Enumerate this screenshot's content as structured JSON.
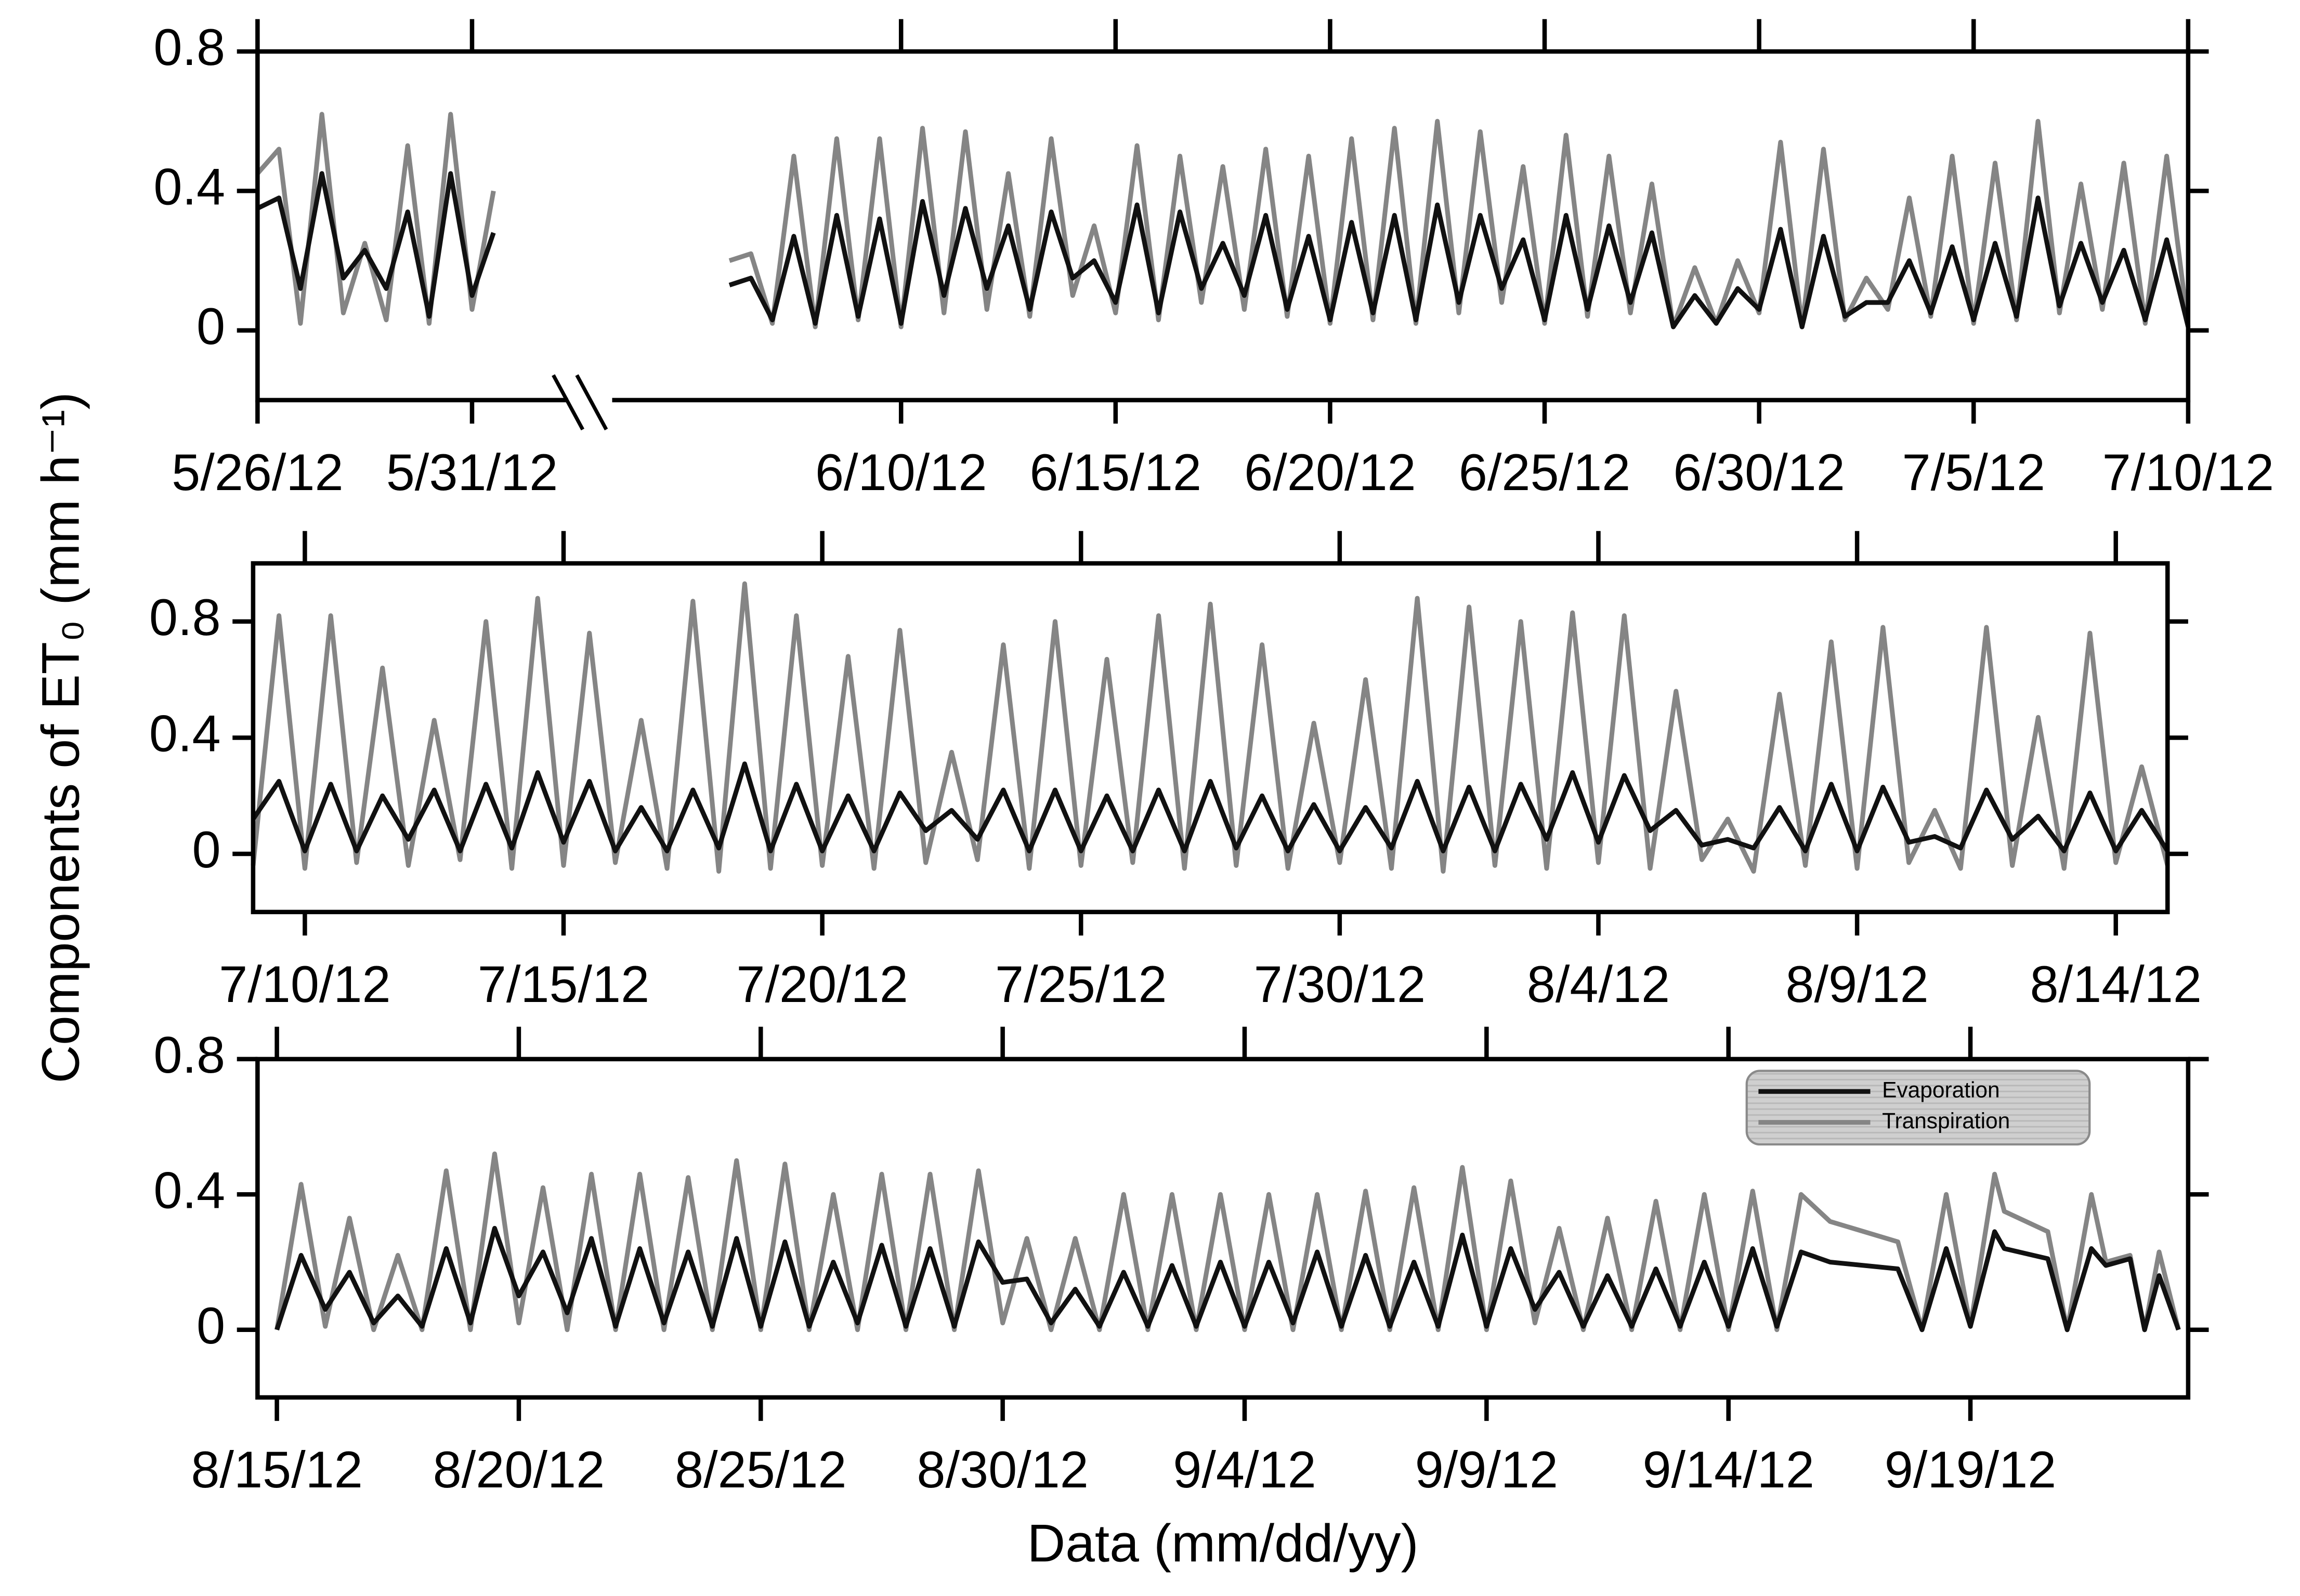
{
  "chart_data": [
    {
      "type": "line",
      "xlim": [
        0,
        45
      ],
      "ylim": [
        -0.2,
        0.8
      ],
      "xticks": [
        {
          "value": 0,
          "label": "5/26/12"
        },
        {
          "value": 5,
          "label": "5/31/12"
        },
        {
          "value": 15,
          "label": "6/10/12"
        },
        {
          "value": 20,
          "label": "6/15/12"
        },
        {
          "value": 25,
          "label": "6/20/12"
        },
        {
          "value": 30,
          "label": "6/25/12"
        },
        {
          "value": 35,
          "label": "6/30/12"
        },
        {
          "value": 40,
          "label": "7/5/12"
        },
        {
          "value": 45,
          "label": "7/10/12"
        }
      ],
      "yticks": [
        0,
        0.4,
        0.8
      ],
      "x": [
        0,
        0.5,
        1,
        1.5,
        2,
        2.5,
        3,
        3.5,
        4,
        4.5,
        5,
        5.5,
        null,
        11,
        11.5,
        12,
        12.5,
        13,
        13.5,
        14,
        14.5,
        15,
        15.5,
        16,
        16.5,
        17,
        17.5,
        18,
        18.5,
        19,
        19.5,
        20,
        20.5,
        21,
        21.5,
        22,
        22.5,
        23,
        23.5,
        24,
        24.5,
        25,
        25.5,
        26,
        26.5,
        27,
        27.5,
        28,
        28.5,
        29,
        29.5,
        30,
        30.5,
        31,
        31.5,
        32,
        32.5,
        33,
        33.5,
        34,
        34.5,
        35,
        35.5,
        36,
        36.5,
        37,
        37.5,
        38,
        38.5,
        39,
        39.5,
        40,
        40.5,
        41,
        41.5,
        42,
        42.5,
        43,
        43.5,
        44,
        44.5,
        45
      ],
      "series": [
        {
          "color": "#111111",
          "values": [
            0.35,
            0.38,
            0.12,
            0.45,
            0.15,
            0.23,
            0.12,
            0.34,
            0.04,
            0.45,
            0.1,
            0.28,
            null,
            0.13,
            0.15,
            0.03,
            0.27,
            0.02,
            0.33,
            0.04,
            0.32,
            0.02,
            0.37,
            0.1,
            0.35,
            0.12,
            0.3,
            0.06,
            0.34,
            0.15,
            0.2,
            0.08,
            0.36,
            0.05,
            0.34,
            0.12,
            0.25,
            0.1,
            0.33,
            0.06,
            0.27,
            0.03,
            0.31,
            0.05,
            0.33,
            0.03,
            0.36,
            0.08,
            0.33,
            0.12,
            0.26,
            0.03,
            0.33,
            0.06,
            0.3,
            0.08,
            0.28,
            0.01,
            0.1,
            0.02,
            0.12,
            0.06,
            0.29,
            0.01,
            0.27,
            0.04,
            0.08,
            0.08,
            0.2,
            0.05,
            0.24,
            0.03,
            0.25,
            0.04,
            0.38,
            0.07,
            0.25,
            0.08,
            0.23,
            0.03,
            0.26,
            0.01
          ]
        },
        {
          "color": "#858585",
          "values": [
            0.45,
            0.52,
            0.02,
            0.62,
            0.05,
            0.25,
            0.03,
            0.53,
            0.02,
            0.62,
            0.06,
            0.4,
            null,
            0.2,
            0.22,
            0.02,
            0.5,
            0.01,
            0.55,
            0.03,
            0.55,
            0.01,
            0.58,
            0.05,
            0.57,
            0.06,
            0.45,
            0.04,
            0.55,
            0.1,
            0.3,
            0.05,
            0.53,
            0.03,
            0.5,
            0.08,
            0.47,
            0.06,
            0.52,
            0.04,
            0.5,
            0.02,
            0.55,
            0.03,
            0.58,
            0.02,
            0.6,
            0.05,
            0.57,
            0.08,
            0.47,
            0.02,
            0.56,
            0.04,
            0.5,
            0.05,
            0.42,
            0.01,
            0.18,
            0.02,
            0.2,
            0.05,
            0.54,
            0.01,
            0.52,
            0.03,
            0.15,
            0.06,
            0.38,
            0.04,
            0.5,
            0.02,
            0.48,
            0.03,
            0.6,
            0.05,
            0.42,
            0.06,
            0.48,
            0.02,
            0.5,
            0.01
          ]
        }
      ]
    },
    {
      "type": "line",
      "xlim": [
        44,
        81
      ],
      "ylim": [
        -0.2,
        1.0
      ],
      "ylabel": "Components of ET₀ (mm h⁻¹)",
      "xticks": [
        {
          "value": 45,
          "label": "7/10/12"
        },
        {
          "value": 50,
          "label": "7/15/12"
        },
        {
          "value": 55,
          "label": "7/20/12"
        },
        {
          "value": 60,
          "label": "7/25/12"
        },
        {
          "value": 65,
          "label": "7/30/12"
        },
        {
          "value": 70,
          "label": "8/4/12"
        },
        {
          "value": 75,
          "label": "8/9/12"
        },
        {
          "value": 80,
          "label": "8/14/12"
        }
      ],
      "yticks": [
        0,
        0.4,
        0.8
      ],
      "x": [
        44,
        44.5,
        45,
        45.5,
        46,
        46.5,
        47,
        47.5,
        48,
        48.5,
        49,
        49.5,
        50,
        50.5,
        51,
        51.5,
        52,
        52.5,
        53,
        53.5,
        54,
        54.5,
        55,
        55.5,
        56,
        56.5,
        57,
        57.5,
        58,
        58.5,
        59,
        59.5,
        60,
        60.5,
        61,
        61.5,
        62,
        62.5,
        63,
        63.5,
        64,
        64.5,
        65,
        65.5,
        66,
        66.5,
        67,
        67.5,
        68,
        68.5,
        69,
        69.5,
        70,
        70.5,
        71,
        71.5,
        72,
        72.5,
        73,
        73.5,
        74,
        74.5,
        75,
        75.5,
        76,
        76.5,
        77,
        77.5,
        78,
        78.5,
        79,
        79.5,
        80,
        80.5,
        81
      ],
      "series": [
        {
          "color": "#111111",
          "values": [
            0.12,
            0.25,
            0.01,
            0.24,
            0.01,
            0.2,
            0.05,
            0.22,
            0.01,
            0.24,
            0.02,
            0.28,
            0.04,
            0.25,
            0.01,
            0.16,
            0.01,
            0.22,
            0.02,
            0.31,
            0.01,
            0.24,
            0.01,
            0.2,
            0.01,
            0.21,
            0.08,
            0.15,
            0.05,
            0.22,
            0.01,
            0.22,
            0.01,
            0.2,
            0.01,
            0.22,
            0.01,
            0.25,
            0.02,
            0.2,
            0.01,
            0.17,
            0.01,
            0.16,
            0.02,
            0.25,
            0.01,
            0.23,
            0.01,
            0.24,
            0.05,
            0.28,
            0.04,
            0.27,
            0.08,
            0.15,
            0.03,
            0.05,
            0.02,
            0.16,
            0.01,
            0.24,
            0.01,
            0.23,
            0.04,
            0.06,
            0.02,
            0.22,
            0.05,
            0.13,
            0.01,
            0.21,
            0.01,
            0.15,
            0.01
          ]
        },
        {
          "color": "#858585",
          "values": [
            -0.04,
            0.82,
            -0.05,
            0.82,
            -0.03,
            0.64,
            -0.04,
            0.46,
            -0.02,
            0.8,
            -0.05,
            0.88,
            -0.04,
            0.76,
            -0.03,
            0.46,
            -0.05,
            0.87,
            -0.06,
            0.93,
            -0.05,
            0.82,
            -0.04,
            0.68,
            -0.05,
            0.77,
            -0.03,
            0.35,
            -0.02,
            0.72,
            -0.05,
            0.8,
            -0.04,
            0.67,
            -0.03,
            0.82,
            -0.05,
            0.86,
            -0.04,
            0.72,
            -0.05,
            0.45,
            -0.03,
            0.6,
            -0.05,
            0.88,
            -0.06,
            0.85,
            -0.04,
            0.8,
            -0.05,
            0.83,
            -0.03,
            0.82,
            -0.05,
            0.56,
            -0.02,
            0.12,
            -0.06,
            0.55,
            -0.04,
            0.73,
            -0.05,
            0.78,
            -0.03,
            0.15,
            -0.05,
            0.78,
            -0.04,
            0.47,
            -0.05,
            0.76,
            -0.03,
            0.3,
            -0.04
          ]
        }
      ]
    },
    {
      "type": "line",
      "xlim": [
        80.6,
        120.5
      ],
      "ylim": [
        -0.2,
        0.8
      ],
      "xlabel": "Data (mm/dd/yy)",
      "legend": "upper right",
      "xticks": [
        {
          "value": 81,
          "label": "8/15/12"
        },
        {
          "value": 86,
          "label": "8/20/12"
        },
        {
          "value": 91,
          "label": "8/25/12"
        },
        {
          "value": 96,
          "label": "8/30/12"
        },
        {
          "value": 101,
          "label": "9/4/12"
        },
        {
          "value": 106,
          "label": "9/9/12"
        },
        {
          "value": 111,
          "label": "9/14/12"
        },
        {
          "value": 116,
          "label": "9/19/12"
        }
      ],
      "yticks": [
        0,
        0.4,
        0.8
      ],
      "x": [
        81,
        81.5,
        82,
        82.5,
        83,
        83.5,
        84,
        84.5,
        85,
        85.5,
        86,
        86.5,
        87,
        87.5,
        88,
        88.5,
        89,
        89.5,
        90,
        90.5,
        91,
        91.5,
        92,
        92.5,
        93,
        93.5,
        94,
        94.5,
        95,
        95.5,
        96,
        96.5,
        97,
        97.5,
        98,
        98.5,
        99,
        99.5,
        100,
        100.5,
        101,
        101.5,
        102,
        102.5,
        103,
        103.5,
        104,
        104.5,
        105,
        105.5,
        106,
        106.5,
        107,
        107.5,
        108,
        108.5,
        109,
        109.5,
        110,
        110.5,
        111,
        111.5,
        112,
        112.5,
        113.1,
        114.5,
        115,
        115.5,
        116,
        116.5,
        116.7,
        117.6,
        118,
        118.5,
        118.8,
        119.3,
        119.6,
        119.9,
        120.3
      ],
      "series": [
        {
          "name": "Evaporation",
          "color": "#111111",
          "values": [
            0,
            0.22,
            0.06,
            0.17,
            0.02,
            0.1,
            0.01,
            0.24,
            0.02,
            0.3,
            0.1,
            0.23,
            0.05,
            0.27,
            0.01,
            0.24,
            0.02,
            0.23,
            0.01,
            0.27,
            0.01,
            0.26,
            0.01,
            0.2,
            0.02,
            0.25,
            0.01,
            0.24,
            0.01,
            0.26,
            0.14,
            0.15,
            0.02,
            0.12,
            0.01,
            0.17,
            0.01,
            0.19,
            0.01,
            0.2,
            0.01,
            0.2,
            0.02,
            0.23,
            0.01,
            0.22,
            0.01,
            0.2,
            0.01,
            0.28,
            0.01,
            0.24,
            0.06,
            0.17,
            0.01,
            0.16,
            0.01,
            0.18,
            0.01,
            0.2,
            0.01,
            0.24,
            0.01,
            0.23,
            0.2,
            0.18,
            0,
            0.24,
            0.01,
            0.29,
            0.24,
            0.21,
            0,
            0.24,
            0.19,
            0.21,
            0,
            0.16,
            0
          ]
        },
        {
          "name": "Transpiration",
          "color": "#858585",
          "values": [
            0,
            0.43,
            0.01,
            0.33,
            0,
            0.22,
            0,
            0.47,
            0,
            0.52,
            0.02,
            0.42,
            0,
            0.46,
            0,
            0.46,
            0,
            0.45,
            0,
            0.5,
            0,
            0.49,
            0,
            0.4,
            0,
            0.46,
            0,
            0.46,
            0,
            0.47,
            0.02,
            0.27,
            0,
            0.27,
            0,
            0.4,
            0,
            0.4,
            0,
            0.4,
            0,
            0.4,
            0,
            0.4,
            0,
            0.41,
            0,
            0.42,
            0,
            0.48,
            0,
            0.44,
            0.02,
            0.3,
            0,
            0.33,
            0,
            0.38,
            0,
            0.4,
            0,
            0.41,
            0,
            0.4,
            0.32,
            0.26,
            0,
            0.4,
            0.01,
            0.46,
            0.35,
            0.29,
            0,
            0.4,
            0.2,
            0.22,
            0,
            0.23,
            0
          ]
        }
      ]
    }
  ]
}
